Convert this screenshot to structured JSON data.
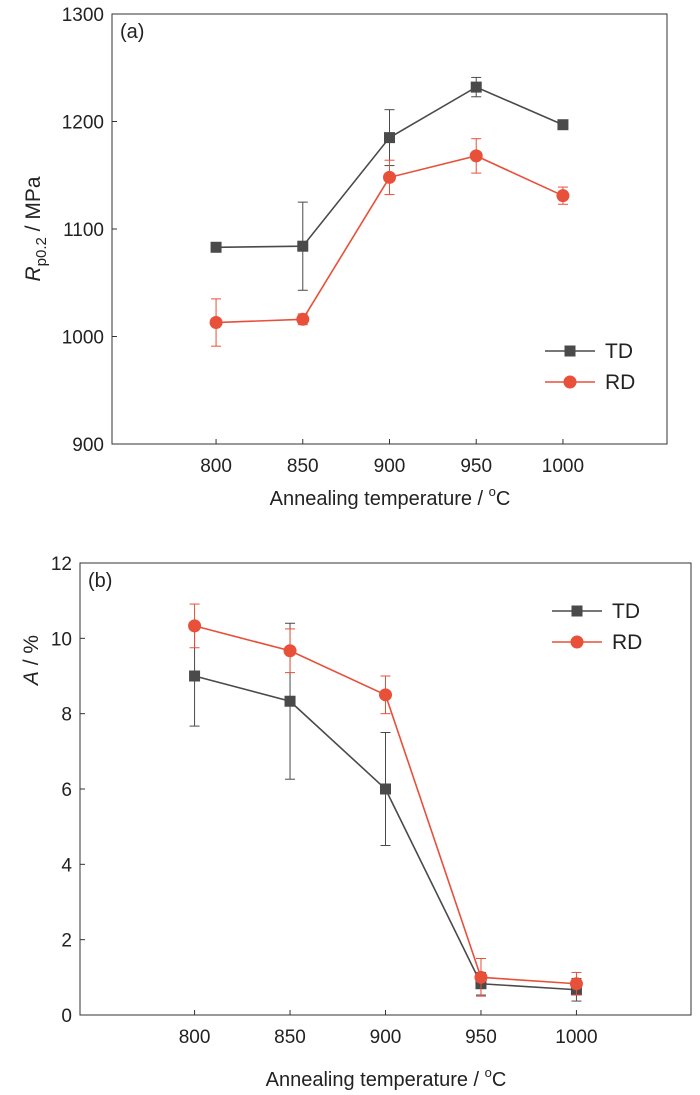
{
  "chart_data": [
    {
      "type": "line",
      "panel_label": "(a)",
      "xlabel": "Annealing temperature / °C",
      "xlabel_main": "Annealing temperature / ",
      "xlabel_sup": "o",
      "xlabel_unit": "C",
      "ylabel": "Rp0.2 / MPa",
      "ylabel_main": "R",
      "ylabel_sub": "p0.2",
      "ylabel_rest": " / MPa",
      "categories": [
        "800",
        "850",
        "900",
        "950",
        "1000"
      ],
      "x": [
        800,
        850,
        900,
        950,
        1000
      ],
      "xlim": [
        740,
        1060
      ],
      "ylim": [
        900,
        1300
      ],
      "yticks": [
        "900",
        "1000",
        "1100",
        "1200",
        "1300"
      ],
      "ytick_values": [
        900,
        1000,
        1100,
        1200,
        1300
      ],
      "legend_position": "lower-right",
      "series": [
        {
          "name": "TD",
          "marker": "square",
          "color": "#4a4a4a",
          "values": [
            1083,
            1084,
            1185,
            1232,
            1197
          ],
          "errors": [
            2,
            41,
            26,
            9,
            2
          ]
        },
        {
          "name": "RD",
          "marker": "circle",
          "color": "#e8503a",
          "values": [
            1013,
            1016,
            1148,
            1168,
            1131
          ],
          "errors": [
            22,
            5,
            16,
            16,
            8
          ]
        }
      ]
    },
    {
      "type": "line",
      "panel_label": "(b)",
      "xlabel": "Annealing temperature / °C",
      "xlabel_main": "Annealing temperature / ",
      "xlabel_sup": "o",
      "xlabel_unit": "C",
      "ylabel": "A / %",
      "ylabel_main": "A",
      "ylabel_sub": "",
      "ylabel_rest": " / %",
      "categories": [
        "800",
        "850",
        "900",
        "950",
        "1000"
      ],
      "x": [
        800,
        850,
        900,
        950,
        1000
      ],
      "xlim": [
        740,
        1060
      ],
      "ylim": [
        0,
        12
      ],
      "yticks": [
        "0",
        "2",
        "4",
        "6",
        "8",
        "10",
        "12"
      ],
      "ytick_values": [
        0,
        2,
        4,
        6,
        8,
        10,
        12
      ],
      "legend_position": "top-right",
      "series": [
        {
          "name": "TD",
          "marker": "square",
          "color": "#4a4a4a",
          "values": [
            9.0,
            8.33,
            6.0,
            0.83,
            0.67
          ],
          "errors": [
            1.33,
            2.07,
            1.5,
            0.3,
            0.3
          ]
        },
        {
          "name": "RD",
          "marker": "circle",
          "color": "#e8503a",
          "values": [
            10.33,
            9.67,
            8.5,
            1.0,
            0.83
          ],
          "errors": [
            0.58,
            0.58,
            0.5,
            0.5,
            0.3
          ]
        }
      ]
    }
  ]
}
